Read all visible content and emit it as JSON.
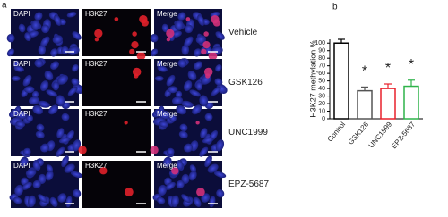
{
  "panel_a": {
    "label": "a",
    "columns": [
      "DAPI",
      "H3K27",
      "Merge"
    ],
    "rows": [
      "Vehicle",
      "GSK126",
      "UNC1999",
      "EPZ-5687"
    ]
  },
  "chart_data": {
    "type": "bar",
    "label": "b",
    "y_label": "H3K27 methylation %",
    "categories": [
      "Control",
      "GSK126",
      "UNC1999",
      "EPZ-5687"
    ],
    "values": [
      100,
      37,
      40,
      43
    ],
    "errors": [
      5,
      5,
      6,
      8
    ],
    "colors": [
      "#000000",
      "#555555",
      "#e8212b",
      "#2fb34a"
    ],
    "significance": [
      null,
      "*",
      "*",
      "*"
    ],
    "ylim": [
      0,
      105
    ],
    "yticks": [
      0,
      10,
      20,
      30,
      40,
      50,
      60,
      70,
      80,
      90,
      100
    ]
  }
}
